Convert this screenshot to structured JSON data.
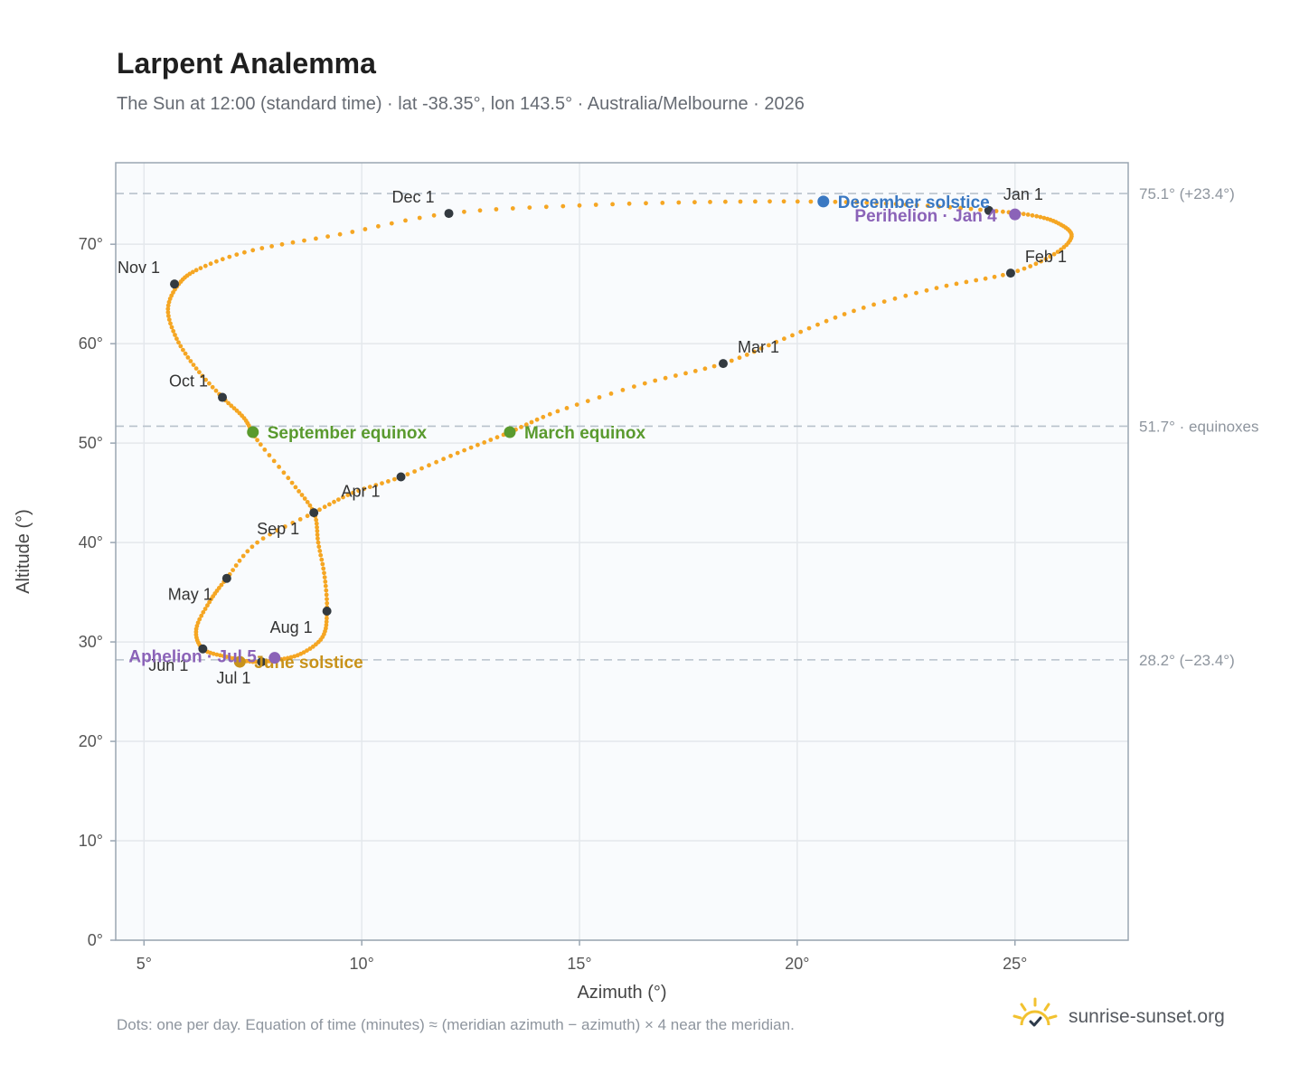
{
  "header": {
    "title": "Larpent Analemma",
    "subtitle": "The Sun at 12:00 (standard time) · lat -38.35°, lon 143.5° · Australia/Melbourne · 2026"
  },
  "footer": {
    "note": "Dots: one per day. Equation of time (minutes) ≈ (meridian azimuth − azimuth) × 4 near the meridian.",
    "brand": "sunrise-sunset.org"
  },
  "colors": {
    "path": "#f5a623",
    "month_marker": "#333a40",
    "december_solstice": "#3a78c2",
    "june_solstice": "#c8921a",
    "equinox": "#5a9a2e",
    "apsis": "#8b63b8",
    "reference_line": "#b8c2cc",
    "plot_bg": "#f9fbfd",
    "grid": "#e4e8ec"
  },
  "chart_data": {
    "type": "scatter",
    "xlabel": "Azimuth (°)",
    "ylabel": "Altitude (°)",
    "xlim": [
      4.35,
      27.6
    ],
    "ylim": [
      0,
      78.2
    ],
    "x_ticks": [
      5,
      10,
      15,
      20,
      25
    ],
    "x_tick_labels": [
      "5°",
      "10°",
      "15°",
      "20°",
      "25°"
    ],
    "y_ticks": [
      0,
      10,
      20,
      30,
      40,
      50,
      60,
      70
    ],
    "y_tick_labels": [
      "0°",
      "10°",
      "20°",
      "30°",
      "40°",
      "50°",
      "60°",
      "70°"
    ],
    "grid": true,
    "path_series": {
      "description_days": "one per day",
      "points": [
        [
          24.4,
          73.4
        ],
        [
          25.4,
          72.9
        ],
        [
          26.0,
          72.1
        ],
        [
          26.3,
          70.8
        ],
        [
          25.9,
          69.0
        ],
        [
          24.9,
          67.1
        ],
        [
          23.2,
          65.6
        ],
        [
          21.3,
          63.3
        ],
        [
          19.7,
          60.5
        ],
        [
          18.3,
          58.0
        ],
        [
          16.5,
          56.0
        ],
        [
          14.5,
          53.2
        ],
        [
          13.4,
          51.1
        ],
        [
          12.2,
          49.0
        ],
        [
          10.9,
          46.6
        ],
        [
          9.8,
          45.0
        ],
        [
          8.9,
          43.0
        ],
        [
          7.6,
          40.0
        ],
        [
          6.9,
          36.4
        ],
        [
          6.5,
          34.0
        ],
        [
          6.2,
          31.3
        ],
        [
          6.35,
          29.3
        ],
        [
          6.9,
          28.5
        ],
        [
          7.5,
          28.0
        ],
        [
          8.0,
          28.15
        ],
        [
          8.6,
          28.8
        ],
        [
          9.1,
          30.5
        ],
        [
          9.2,
          33.1
        ],
        [
          9.15,
          36.5
        ],
        [
          9.0,
          40.0
        ],
        [
          8.9,
          43.0
        ],
        [
          8.4,
          46.0
        ],
        [
          7.6,
          50.3
        ],
        [
          7.3,
          52.5
        ],
        [
          6.8,
          54.6
        ],
        [
          6.2,
          57.5
        ],
        [
          5.75,
          60.5
        ],
        [
          5.55,
          63.5
        ],
        [
          5.8,
          66.0
        ],
        [
          6.3,
          67.6
        ],
        [
          7.5,
          69.4
        ],
        [
          9.5,
          71.0
        ],
        [
          12.0,
          73.1
        ],
        [
          15.0,
          73.9
        ],
        [
          18.0,
          74.25
        ],
        [
          20.6,
          74.28
        ],
        [
          22.5,
          74.0
        ],
        [
          24.4,
          73.4
        ]
      ]
    },
    "month_markers": [
      {
        "label": "Jan 1",
        "az": 24.4,
        "alt": 73.4
      },
      {
        "label": "Feb 1",
        "az": 24.9,
        "alt": 67.1
      },
      {
        "label": "Mar 1",
        "az": 18.3,
        "alt": 58.0
      },
      {
        "label": "Apr 1",
        "az": 10.9,
        "alt": 46.6
      },
      {
        "label": "May 1",
        "az": 6.9,
        "alt": 36.4
      },
      {
        "label": "Jun 1",
        "az": 6.35,
        "alt": 29.3
      },
      {
        "label": "Jul 1",
        "az": 7.7,
        "alt": 28.0
      },
      {
        "label": "Aug 1",
        "az": 9.2,
        "alt": 33.1
      },
      {
        "label": "Sep 1",
        "az": 8.9,
        "alt": 43.0
      },
      {
        "label": "Oct 1",
        "az": 6.8,
        "alt": 54.6
      },
      {
        "label": "Nov 1",
        "az": 5.7,
        "alt": 66.0
      },
      {
        "label": "Dec 1",
        "az": 12.0,
        "alt": 73.1
      }
    ],
    "events": [
      {
        "label": "December solstice",
        "az": 20.6,
        "alt": 74.3,
        "kind": "december_solstice"
      },
      {
        "label": "Perihelion · Jan 4",
        "az": 25.0,
        "alt": 73.0,
        "kind": "apsis"
      },
      {
        "label": "March equinox",
        "az": 13.4,
        "alt": 51.1,
        "kind": "equinox"
      },
      {
        "label": "September equinox",
        "az": 7.5,
        "alt": 51.1,
        "kind": "equinox"
      },
      {
        "label": "June solstice",
        "az": 7.2,
        "alt": 28.0,
        "kind": "june_solstice"
      },
      {
        "label": "Aphelion · Jul 5",
        "az": 8.0,
        "alt": 28.4,
        "kind": "apsis"
      }
    ],
    "reference_lines": [
      {
        "alt": 75.1,
        "label": "75.1° (+23.4°)"
      },
      {
        "alt": 51.7,
        "label": "51.7° · equinoxes"
      },
      {
        "alt": 28.2,
        "label": "28.2° (−23.4°)"
      }
    ]
  }
}
